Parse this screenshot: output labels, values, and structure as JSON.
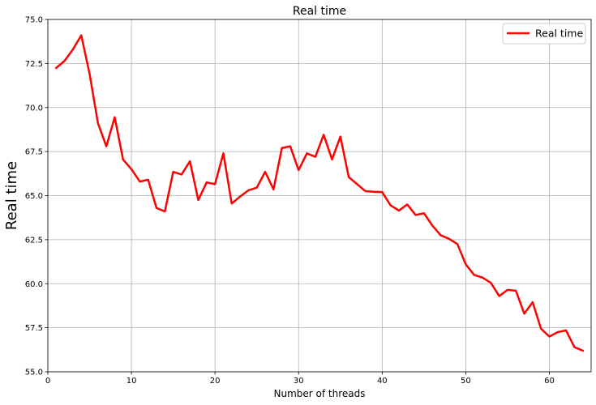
{
  "chart_data": {
    "type": "line",
    "title": "Real time",
    "xlabel": "Number of threads",
    "ylabel": "Real time",
    "xlim": [
      0,
      65
    ],
    "ylim": [
      55.0,
      75.0
    ],
    "xticks": [
      0,
      10,
      20,
      30,
      40,
      50,
      60
    ],
    "xtick_labels": [
      "0",
      "10",
      "20",
      "30",
      "40",
      "50",
      "60"
    ],
    "yticks": [
      55.0,
      57.5,
      60.0,
      62.5,
      65.0,
      67.5,
      70.0,
      72.5,
      75.0
    ],
    "ytick_labels": [
      "55.0",
      "57.5",
      "60.0",
      "62.5",
      "65.0",
      "67.5",
      "70.0",
      "72.5",
      "75.0"
    ],
    "grid": true,
    "legend": {
      "position": "top-right",
      "entries": [
        "Real time"
      ]
    },
    "series": [
      {
        "name": "Real time",
        "color": "#ff0000",
        "x": [
          1,
          2,
          3,
          4,
          5,
          6,
          7,
          8,
          9,
          10,
          11,
          12,
          13,
          14,
          15,
          16,
          17,
          18,
          19,
          20,
          21,
          22,
          23,
          24,
          25,
          26,
          27,
          28,
          29,
          30,
          31,
          32,
          33,
          34,
          35,
          36,
          37,
          38,
          39,
          40,
          41,
          42,
          43,
          44,
          45,
          46,
          47,
          48,
          49,
          50,
          51,
          52,
          53,
          54,
          55,
          56,
          57,
          58,
          59,
          60,
          61,
          62,
          63,
          64
        ],
        "values": [
          72.25,
          72.65,
          73.3,
          74.1,
          71.9,
          69.1,
          67.8,
          69.45,
          67.05,
          66.5,
          65.8,
          65.9,
          64.3,
          64.1,
          66.35,
          66.2,
          66.95,
          64.75,
          65.75,
          65.65,
          67.4,
          64.55,
          64.95,
          65.3,
          65.45,
          66.35,
          65.35,
          67.7,
          67.8,
          66.45,
          67.4,
          67.2,
          68.45,
          67.05,
          68.35,
          66.05,
          65.65,
          65.25,
          65.22,
          65.2,
          64.45,
          64.15,
          64.5,
          63.9,
          64.0,
          63.3,
          62.75,
          62.55,
          62.25,
          61.1,
          60.5,
          60.35,
          60.05,
          59.3,
          59.65,
          59.6,
          58.3,
          58.95,
          57.45,
          57.0,
          57.25,
          57.35,
          56.4,
          56.2
        ]
      }
    ]
  }
}
